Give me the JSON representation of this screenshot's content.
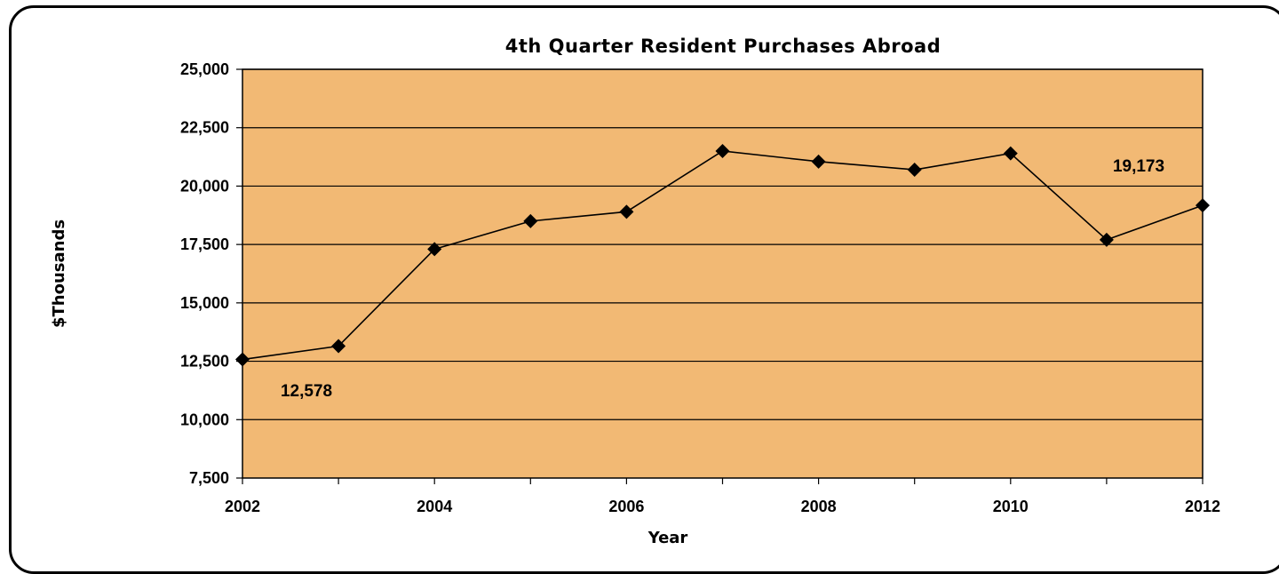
{
  "chart_data": {
    "type": "line",
    "title": "4th Quarter Resident Purchases Abroad",
    "xlabel": "Year",
    "ylabel": "$Thousands",
    "x": [
      2002,
      2003,
      2004,
      2005,
      2006,
      2007,
      2008,
      2009,
      2010,
      2011,
      2012
    ],
    "values": [
      12578,
      13150,
      17300,
      18500,
      18900,
      21500,
      21050,
      20700,
      21400,
      17700,
      19173
    ],
    "ylim": [
      7500,
      25000
    ],
    "xlim": [
      2002,
      2012
    ],
    "y_ticks": [
      "7,500",
      "10,000",
      "12,500",
      "15,000",
      "17,500",
      "20,000",
      "22,500",
      "25,000"
    ],
    "x_tick_labels": [
      "2002",
      "2004",
      "2006",
      "2008",
      "2010",
      "2012"
    ],
    "annotations": [
      {
        "text": "12,578",
        "x": 2002
      },
      {
        "text": "19,173",
        "x": 2012
      }
    ],
    "grid": true,
    "legend": "none",
    "colors": {
      "plot_background": "#f2b974",
      "line": "#000000",
      "marker": "#000000"
    }
  }
}
